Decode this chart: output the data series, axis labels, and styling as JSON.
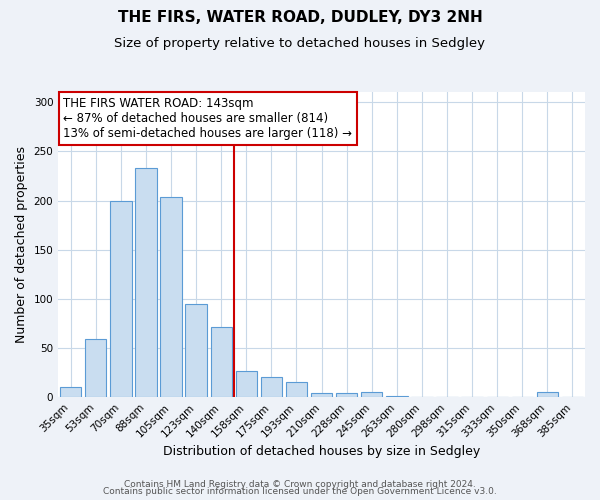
{
  "title": "THE FIRS, WATER ROAD, DUDLEY, DY3 2NH",
  "subtitle": "Size of property relative to detached houses in Sedgley",
  "xlabel": "Distribution of detached houses by size in Sedgley",
  "ylabel": "Number of detached properties",
  "bar_labels": [
    "35sqm",
    "53sqm",
    "70sqm",
    "88sqm",
    "105sqm",
    "123sqm",
    "140sqm",
    "158sqm",
    "175sqm",
    "193sqm",
    "210sqm",
    "228sqm",
    "245sqm",
    "263sqm",
    "280sqm",
    "298sqm",
    "315sqm",
    "333sqm",
    "350sqm",
    "368sqm",
    "385sqm"
  ],
  "bar_values": [
    10,
    59,
    200,
    233,
    204,
    95,
    71,
    27,
    21,
    15,
    4,
    4,
    5,
    1,
    0,
    0,
    0,
    0,
    0,
    5,
    0
  ],
  "bar_color": "#c9ddf0",
  "bar_edge_color": "#5b9bd5",
  "vline_pos": 6.5,
  "vline_color": "#cc0000",
  "annotation_title": "THE FIRS WATER ROAD: 143sqm",
  "annotation_line1": "← 87% of detached houses are smaller (814)",
  "annotation_line2": "13% of semi-detached houses are larger (118) →",
  "annotation_box_color": "#ffffff",
  "annotation_box_edge_color": "#cc0000",
  "ylim": [
    0,
    310
  ],
  "yticks": [
    0,
    50,
    100,
    150,
    200,
    250,
    300
  ],
  "footer1": "Contains HM Land Registry data © Crown copyright and database right 2024.",
  "footer2": "Contains public sector information licensed under the Open Government Licence v3.0.",
  "bg_color": "#eef2f8",
  "plot_bg_color": "#ffffff",
  "grid_color": "#c8d8e8",
  "title_fontsize": 11,
  "subtitle_fontsize": 9.5,
  "axis_label_fontsize": 9,
  "tick_fontsize": 7.5,
  "annotation_fontsize": 8.5,
  "footer_fontsize": 6.5
}
